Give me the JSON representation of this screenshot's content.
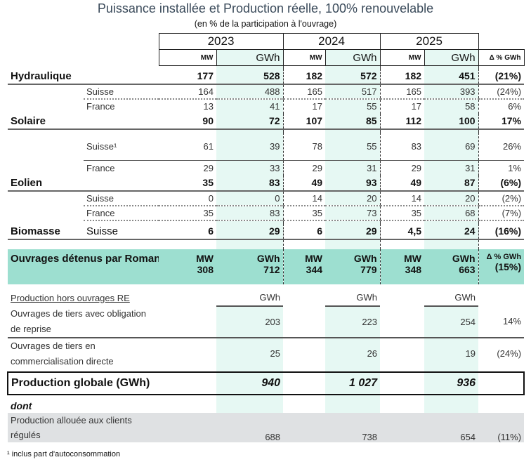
{
  "title": "Puissance installée et Production réelle, 100% renouvelable",
  "subtitle": "(en % de la participation à l'ouvrage)",
  "years": [
    "2023",
    "2024",
    "2025"
  ],
  "units": {
    "mw": "MW",
    "gwh": "GWh",
    "delta": "Δ % GWh"
  },
  "rows": [
    {
      "k": "b",
      "label": "Hydraulique",
      "cells": [
        "177",
        "528",
        "182",
        "572",
        "182",
        "451",
        "(21%)"
      ]
    },
    {
      "k": "s dot",
      "sub": "Suisse",
      "cells": [
        "164",
        "488",
        "165",
        "517",
        "165",
        "393",
        "(24%)"
      ]
    },
    {
      "k": "s",
      "sub": "France",
      "cells": [
        "13",
        "41",
        "17",
        "55",
        "17",
        "58",
        "6%"
      ]
    },
    {
      "k": "b",
      "label": "Solaire",
      "cells": [
        "90",
        "72",
        "107",
        "85",
        "112",
        "100",
        "17%"
      ]
    },
    {
      "k": "s sol",
      "sub": "Suisse¹",
      "cells": [
        "61",
        "39",
        "78",
        "55",
        "83",
        "69",
        "26%"
      ],
      "h": 40
    },
    {
      "k": "s",
      "sub": "France",
      "cells": [
        "29",
        "33",
        "29",
        "31",
        "29",
        "31",
        "1%"
      ]
    },
    {
      "k": "b",
      "label": "Eolien",
      "cells": [
        "35",
        "83",
        "49",
        "93",
        "49",
        "87",
        "(6%)"
      ]
    },
    {
      "k": "s dot",
      "sub": "Suisse",
      "cells": [
        "0",
        "0",
        "14",
        "20",
        "14",
        "20",
        "(2%)"
      ]
    },
    {
      "k": "s dot",
      "sub": "France",
      "cells": [
        "35",
        "83",
        "35",
        "73",
        "35",
        "68",
        "(7%)"
      ]
    },
    {
      "k": "b",
      "label": "Biomasse",
      "sub": "Suisse",
      "cells": [
        "6",
        "29",
        "6",
        "29",
        "4,5",
        "24",
        "(16%)"
      ]
    }
  ],
  "owned": {
    "label": "Ouvrages détenus par Romande Energie",
    "cells": [
      "308",
      "712",
      "344",
      "779",
      "348",
      "663",
      "(15%)"
    ]
  },
  "external": {
    "label": "Production hors ouvrages RE",
    "rows": [
      {
        "label": "Ouvrages de tiers avec obligation de reprise",
        "values": [
          "203",
          "223",
          "254"
        ],
        "delta": "14%"
      },
      {
        "label": "Ouvrages de tiers en commercialisation directe",
        "values": [
          "25",
          "26",
          "19"
        ],
        "delta": "(24%)"
      }
    ]
  },
  "global": {
    "label": "Production globale (GWh)",
    "values": [
      "940",
      "1 027",
      "936"
    ]
  },
  "dont": "dont",
  "regulated": {
    "label": "Production allouée aux clients régulés",
    "values": [
      "688",
      "738",
      "654"
    ],
    "delta": "(11%)"
  },
  "footnote": "¹ inclus part d'autoconsommation"
}
